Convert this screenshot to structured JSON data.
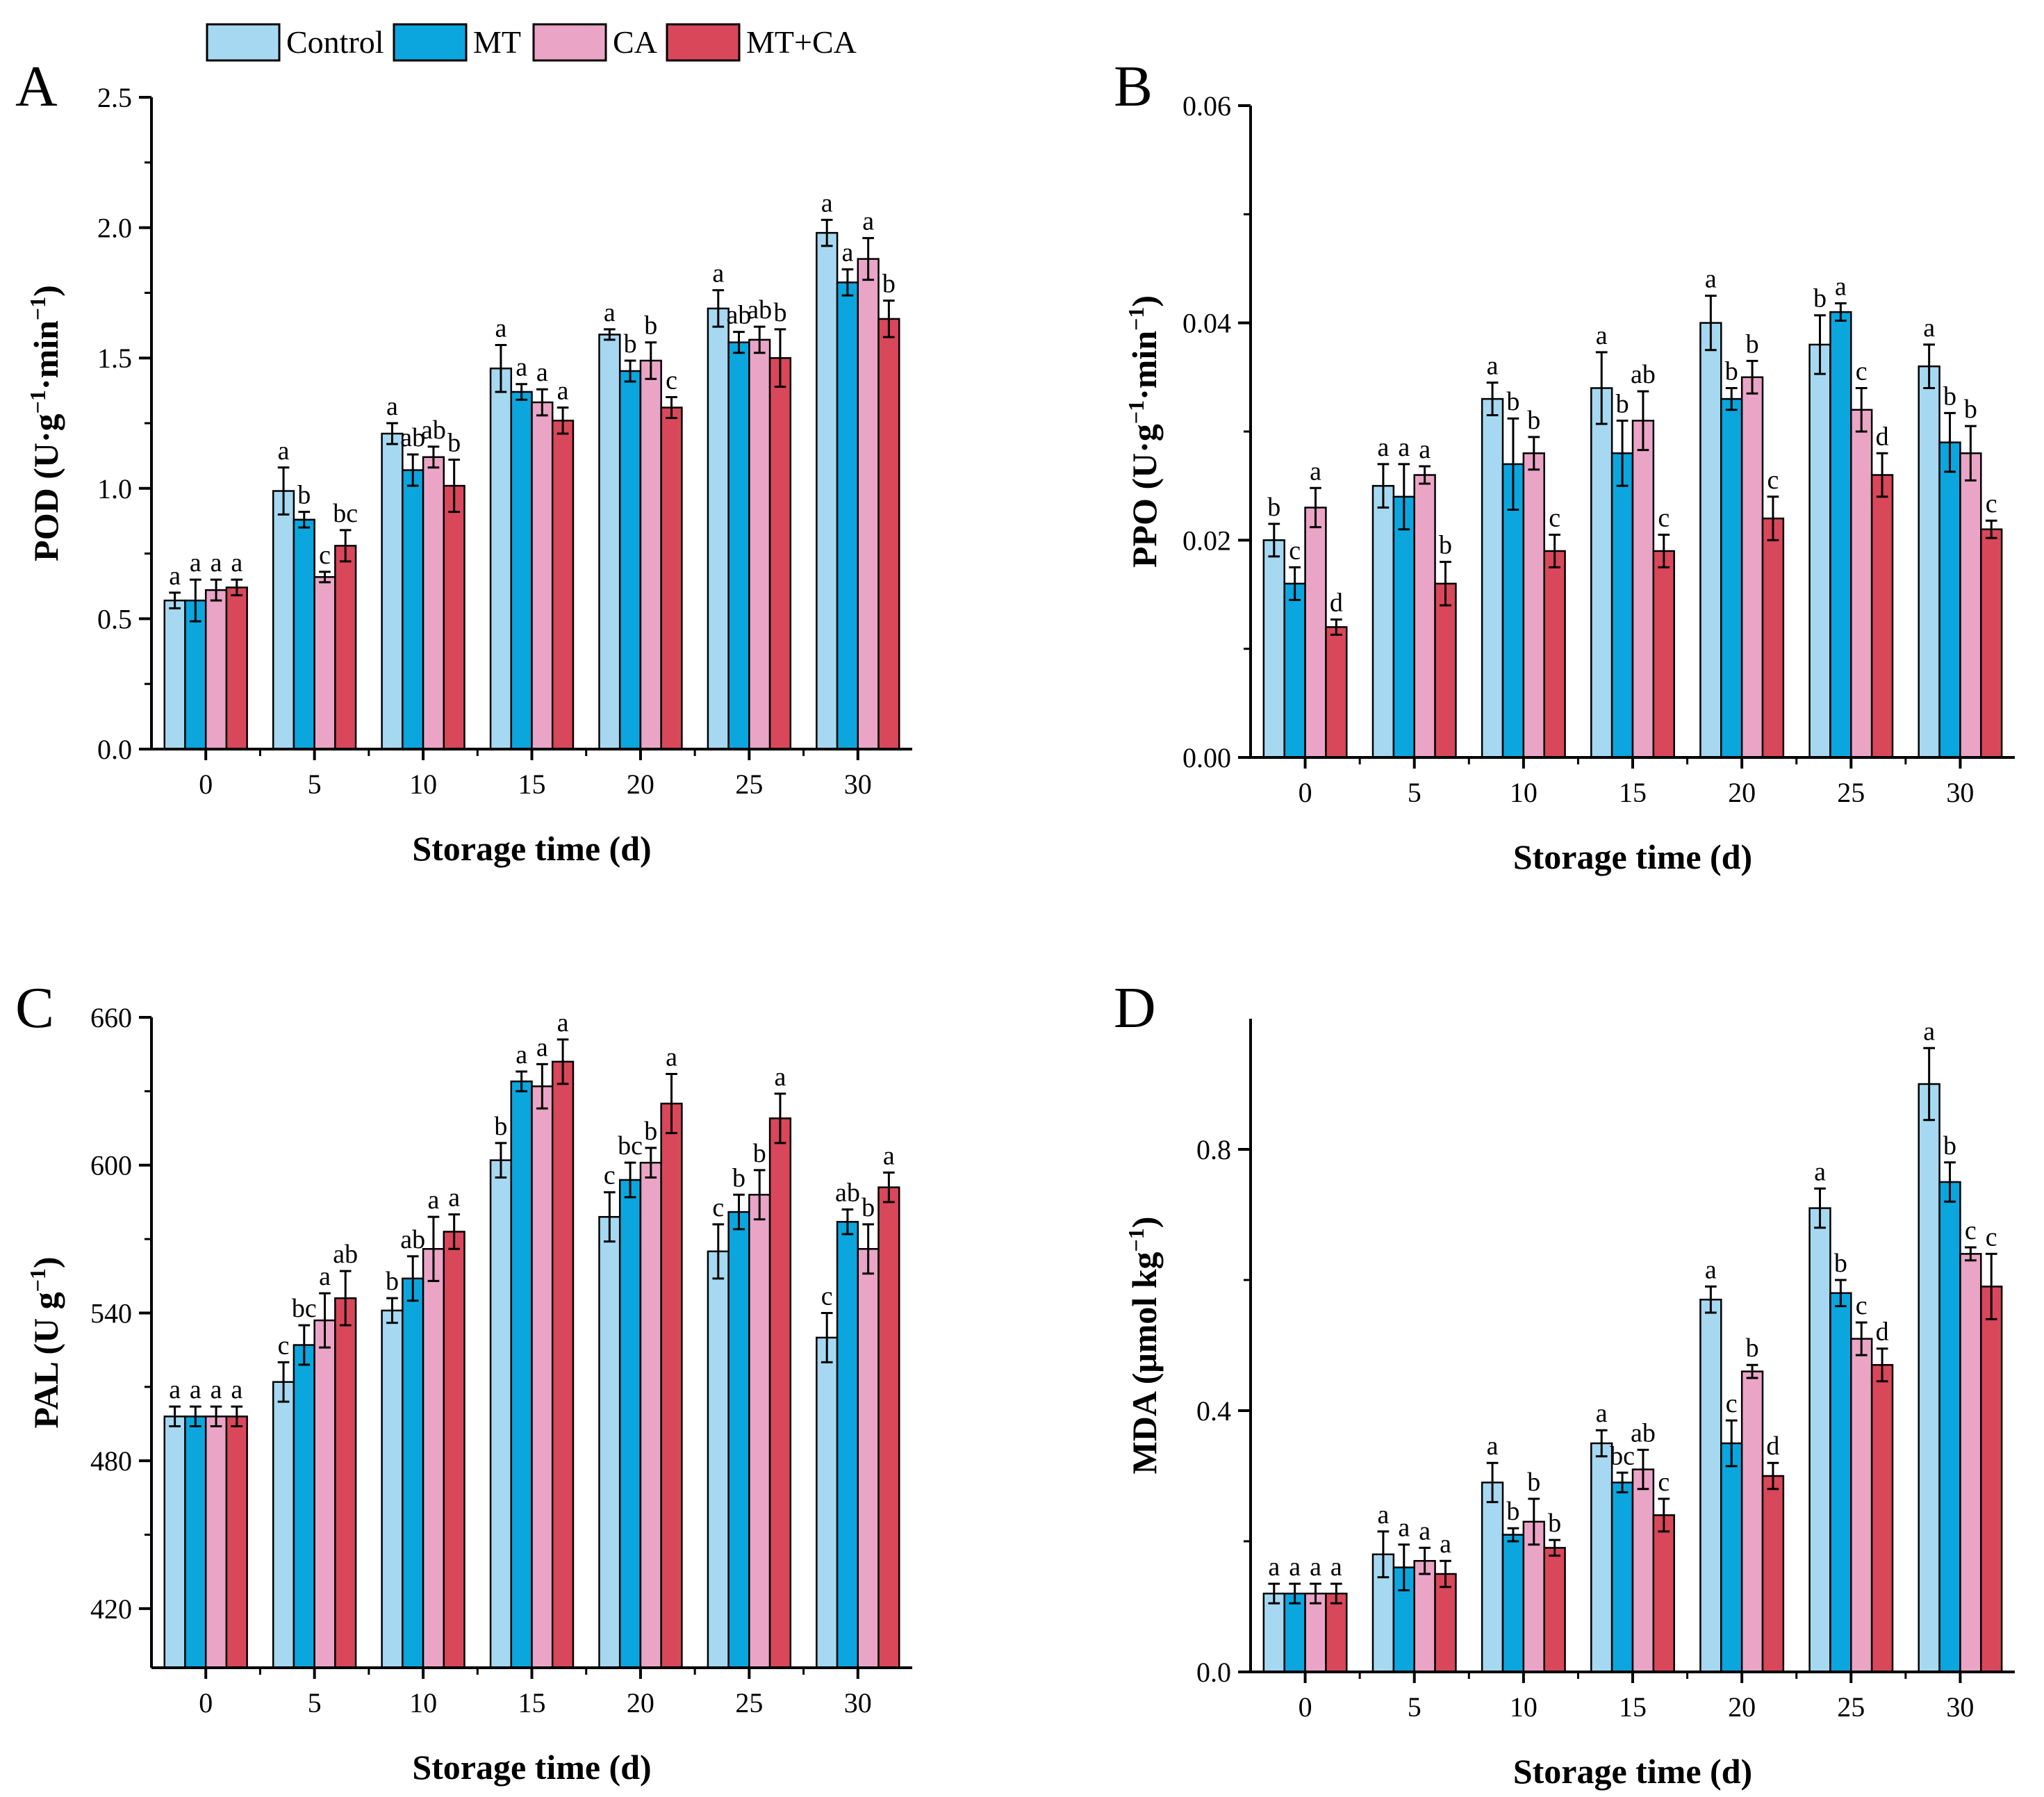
{
  "legend": {
    "items": [
      {
        "label": "Control",
        "color": "#a6d9f1"
      },
      {
        "label": "MT",
        "color": "#0ba6de"
      },
      {
        "label": "CA",
        "color": "#eaa5c6"
      },
      {
        "label": "MT+CA",
        "color": "#d9475a"
      }
    ]
  },
  "chart_data": [
    {
      "type": "bar",
      "panel": "A",
      "xlabel": "Storage time (d)",
      "ylabel": "POD (U·g⁻¹·min⁻¹)",
      "ylabel_parts": {
        "pre": "POD (U·g",
        "sup1": "−1",
        "mid": "·min",
        "sup2": "−1",
        "post": ")"
      },
      "categories": [
        "0",
        "5",
        "10",
        "15",
        "20",
        "25",
        "30"
      ],
      "ylim": [
        0,
        2.5
      ],
      "yticks": [
        "0.0",
        "0.5",
        "1.0",
        "1.5",
        "2.0",
        "2.5"
      ],
      "series": [
        {
          "name": "Control",
          "values": [
            0.57,
            0.99,
            1.21,
            1.46,
            1.59,
            1.69,
            1.98
          ],
          "errors": [
            0.03,
            0.09,
            0.04,
            0.09,
            0.02,
            0.07,
            0.05
          ],
          "letters": [
            "a",
            "a",
            "a",
            "a",
            "a",
            "a",
            "a"
          ]
        },
        {
          "name": "MT",
          "values": [
            0.57,
            0.88,
            1.07,
            1.37,
            1.45,
            1.56,
            1.79
          ],
          "errors": [
            0.08,
            0.03,
            0.06,
            0.03,
            0.04,
            0.04,
            0.05
          ],
          "letters": [
            "a",
            "b",
            "ab",
            "a",
            "b",
            "ab",
            "a"
          ]
        },
        {
          "name": "CA",
          "values": [
            0.61,
            0.66,
            1.12,
            1.33,
            1.49,
            1.57,
            1.88
          ],
          "errors": [
            0.04,
            0.02,
            0.04,
            0.05,
            0.07,
            0.05,
            0.08
          ],
          "letters": [
            "a",
            "c",
            "ab",
            "a",
            "b",
            "ab",
            "a"
          ]
        },
        {
          "name": "MT+CA",
          "values": [
            0.62,
            0.78,
            1.01,
            1.26,
            1.31,
            1.5,
            1.65
          ],
          "errors": [
            0.03,
            0.06,
            0.1,
            0.05,
            0.04,
            0.11,
            0.07
          ],
          "letters": [
            "a",
            "bc",
            "b",
            "a",
            "c",
            "b",
            "b"
          ]
        }
      ]
    },
    {
      "type": "bar",
      "panel": "B",
      "xlabel": "Storage time (d)",
      "ylabel": "PPO (U·g⁻¹·min⁻¹)",
      "ylabel_parts": {
        "pre": "PPO (U·g",
        "sup1": "−1",
        "mid": "·min",
        "sup2": "−1",
        "post": ")"
      },
      "categories": [
        "0",
        "5",
        "10",
        "15",
        "20",
        "25",
        "30"
      ],
      "ylim": [
        0,
        0.06
      ],
      "yticks": [
        "0.00",
        "0.02",
        "0.04",
        "0.06"
      ],
      "series": [
        {
          "name": "Control",
          "values": [
            0.02,
            0.025,
            0.033,
            0.034,
            0.04,
            0.038,
            0.036
          ],
          "errors": [
            0.0015,
            0.002,
            0.0015,
            0.0033,
            0.0025,
            0.0027,
            0.002
          ],
          "letters": [
            "b",
            "a",
            "a",
            "a",
            "a",
            "b",
            "a"
          ]
        },
        {
          "name": "MT",
          "values": [
            0.016,
            0.024,
            0.027,
            0.028,
            0.033,
            0.041,
            0.029
          ],
          "errors": [
            0.0015,
            0.003,
            0.0042,
            0.003,
            0.001,
            0.0008,
            0.0027
          ],
          "letters": [
            "c",
            "a",
            "b",
            "b",
            "b",
            "a",
            "b"
          ]
        },
        {
          "name": "CA",
          "values": [
            0.023,
            0.026,
            0.028,
            0.031,
            0.035,
            0.032,
            0.028
          ],
          "errors": [
            0.0018,
            0.0008,
            0.0015,
            0.0027,
            0.0015,
            0.002,
            0.0025
          ],
          "letters": [
            "a",
            "a",
            "b",
            "ab",
            "b",
            "c",
            "b"
          ]
        },
        {
          "name": "MT+CA",
          "values": [
            0.012,
            0.016,
            0.019,
            0.019,
            0.022,
            0.026,
            0.021
          ],
          "errors": [
            0.0007,
            0.002,
            0.0015,
            0.0015,
            0.002,
            0.002,
            0.0008
          ],
          "letters": [
            "d",
            "b",
            "c",
            "c",
            "c",
            "d",
            "c"
          ]
        }
      ]
    },
    {
      "type": "bar",
      "panel": "C",
      "xlabel": "Storage time (d)",
      "ylabel": "PAL (U g⁻¹)",
      "ylabel_parts": {
        "pre": "PAL (U g",
        "sup1": "−1",
        "mid": "",
        "sup2": "",
        "post": ")"
      },
      "categories": [
        "0",
        "5",
        "10",
        "15",
        "20",
        "25",
        "30"
      ],
      "ylim": [
        396,
        660
      ],
      "yticks": [
        "420",
        "480",
        "540",
        "600",
        "660"
      ],
      "series": [
        {
          "name": "Control",
          "values": [
            498,
            512,
            541,
            602,
            579,
            565,
            530
          ],
          "errors": [
            4,
            8,
            5,
            7,
            10,
            11,
            10
          ],
          "letters": [
            "a",
            "c",
            "b",
            "b",
            "c",
            "c",
            "c"
          ]
        },
        {
          "name": "MT",
          "values": [
            498,
            527,
            554,
            634,
            594,
            581,
            577
          ],
          "errors": [
            4,
            8,
            9,
            4,
            7,
            7,
            5
          ],
          "letters": [
            "a",
            "bc",
            "ab",
            "a",
            "bc",
            "b",
            "ab"
          ]
        },
        {
          "name": "CA",
          "values": [
            498,
            537,
            566,
            632,
            601,
            588,
            566
          ],
          "errors": [
            4,
            11,
            13,
            9,
            6,
            10,
            10
          ],
          "letters": [
            "a",
            "a",
            "a",
            "a",
            "b",
            "b",
            "b"
          ]
        },
        {
          "name": "MT+CA",
          "values": [
            498,
            546,
            573,
            642,
            625,
            619,
            591
          ],
          "errors": [
            4,
            11,
            7,
            9,
            12,
            10,
            6
          ],
          "letters": [
            "a",
            "ab",
            "a",
            "a",
            "a",
            "a",
            "a"
          ]
        }
      ]
    },
    {
      "type": "bar",
      "panel": "D",
      "xlabel": "Storage time (d)",
      "ylabel": "MDA (μmol kg⁻¹)",
      "ylabel_parts": {
        "pre": "MDA (μmol kg",
        "sup1": "−1",
        "mid": "",
        "sup2": "",
        "post": ")"
      },
      "categories": [
        "0",
        "5",
        "10",
        "15",
        "20",
        "25",
        "30"
      ],
      "ylim": [
        0,
        1.0
      ],
      "yticks": [
        "0.0",
        "0.4",
        "0.8"
      ],
      "series": [
        {
          "name": "Control",
          "values": [
            0.12,
            0.18,
            0.29,
            0.35,
            0.57,
            0.71,
            0.9
          ],
          "errors": [
            0.015,
            0.035,
            0.03,
            0.02,
            0.02,
            0.03,
            0.055
          ],
          "letters": [
            "a",
            "a",
            "a",
            "a",
            "a",
            "a",
            "a"
          ]
        },
        {
          "name": "MT",
          "values": [
            0.12,
            0.16,
            0.21,
            0.29,
            0.35,
            0.58,
            0.75
          ],
          "errors": [
            0.015,
            0.035,
            0.01,
            0.015,
            0.035,
            0.02,
            0.03
          ],
          "letters": [
            "a",
            "a",
            "b",
            "bc",
            "c",
            "b",
            "b"
          ]
        },
        {
          "name": "CA",
          "values": [
            0.12,
            0.17,
            0.23,
            0.31,
            0.46,
            0.51,
            0.64
          ],
          "errors": [
            0.015,
            0.02,
            0.035,
            0.03,
            0.01,
            0.025,
            0.01
          ],
          "letters": [
            "a",
            "a",
            "b",
            "ab",
            "b",
            "c",
            "c"
          ]
        },
        {
          "name": "MT+CA",
          "values": [
            0.12,
            0.15,
            0.19,
            0.24,
            0.3,
            0.47,
            0.59
          ],
          "errors": [
            0.015,
            0.02,
            0.012,
            0.025,
            0.02,
            0.025,
            0.05
          ],
          "letters": [
            "a",
            "a",
            "b",
            "c",
            "d",
            "d",
            "c"
          ]
        }
      ]
    }
  ]
}
